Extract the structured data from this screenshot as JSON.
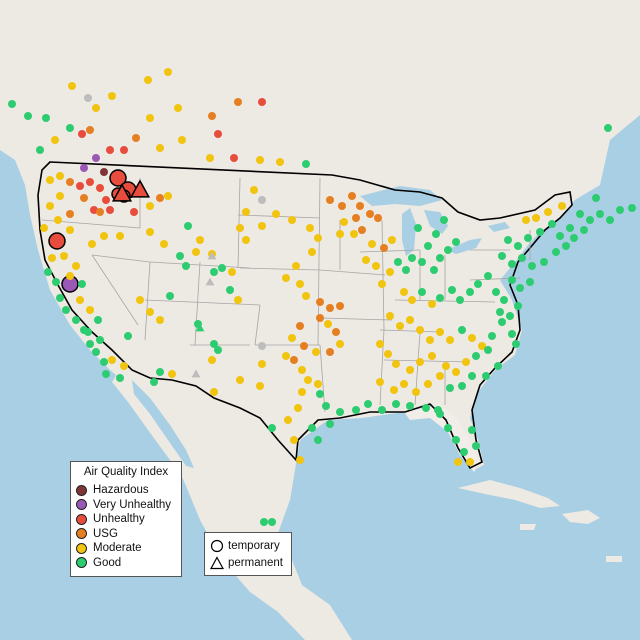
{
  "legend": {
    "title": "Air Quality Index",
    "items": [
      {
        "label": "Hazardous",
        "color": "#7f3535"
      },
      {
        "label": "Very Unhealthy",
        "color": "#9b59b6"
      },
      {
        "label": "Unhealthy",
        "color": "#e74c3c"
      },
      {
        "label": "USG",
        "color": "#e67e22"
      },
      {
        "label": "Moderate",
        "color": "#f1c40f"
      },
      {
        "label": "Good",
        "color": "#2ecc71"
      }
    ]
  },
  "shape_legend": {
    "items": [
      {
        "label": "temporary",
        "icon": "circle-icon"
      },
      {
        "label": "permanent",
        "icon": "triangle-icon"
      }
    ]
  },
  "colors": {
    "water": "#a9cfe4",
    "land": "#ede9e3",
    "us_land": "#f1eeea",
    "border": "#000000",
    "state_lines": "#a6a6a6",
    "no_data": "#bdbdbd"
  }
}
